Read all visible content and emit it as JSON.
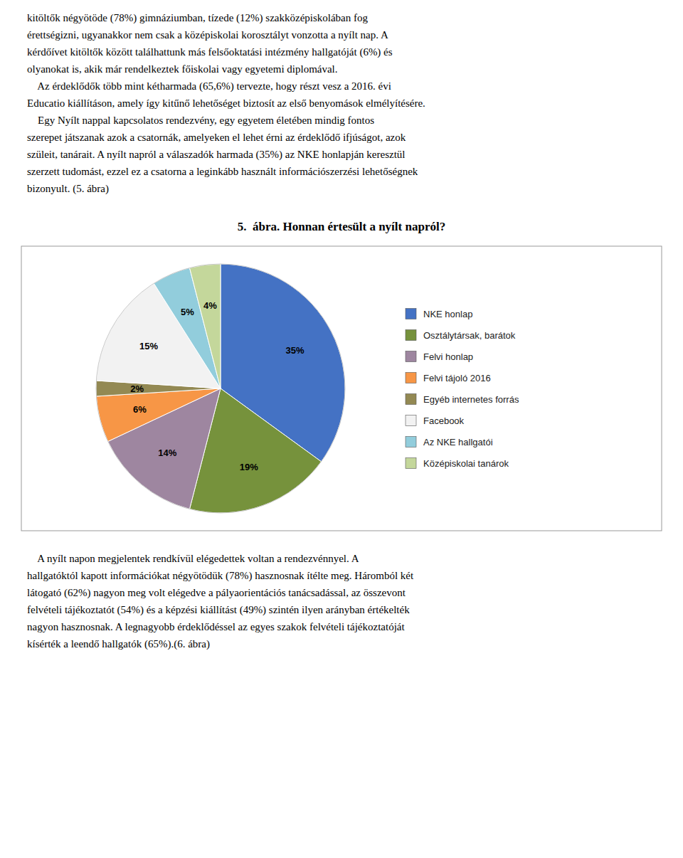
{
  "chart_data": {
    "type": "pie",
    "title": "5.  ábra. Honnan értesült a nyílt napról?",
    "categories": [
      "NKE honlap",
      "Osztálytársak, barátok",
      "Felvi honlap",
      "Felvi tájoló 2016",
      "Egyéb internetes forrás",
      "Facebook",
      "Az NKE hallgatói",
      "Középiskolai tanárok"
    ],
    "values": [
      35,
      19,
      14,
      6,
      2,
      15,
      5,
      4
    ],
    "value_labels": [
      "35%",
      "19%",
      "14%",
      "6%",
      "2%",
      "15%",
      "5%",
      "4%"
    ],
    "colors": [
      "#4472C4",
      "#76923C",
      "#9E86A0",
      "#F79646",
      "#938953",
      "#F2F2F2",
      "#92CDDC",
      "#C4D79B"
    ],
    "data_labels": true,
    "legend": "right",
    "annotations": [
      [
        "kitöltők négyötöde (78%) gimnáziumban, tízede (12%) szakközépiskolában fog",
        "érettségizni, ugyanakkor nem csak a középiskolai korosztályt vonzotta a nyílt nap. A",
        "kérdőívet kitöltők között találhattunk más felsőoktatási intézmény hallgatóját (6%) és",
        "olyanokat is, akik már rendelkeztek főiskolai vagy egyetemi diplomával.",
        "    Az érdeklődők több mint kétharmada (65,6%) tervezte, hogy részt vesz a 2016. évi",
        "Educatio kiállításon, amely így kitűnő lehetőséget biztosít az első benyomások elmélyítésére.",
        "    Egy Nyílt nappal kapcsolatos rendezvény, egy egyetem életében mindig fontos",
        "szerepet játszanak azok a csatornák, amelyeken el lehet érni az érdeklődő ifjúságot, azok",
        "szüleit, tanárait. A nyílt napról a válaszadók harmada (35%) az NKE honlapján keresztül",
        "szerzett tudomást, ezzel ez a csatorna a leginkább használt információszerzési lehetőségnek",
        "bizonyult. (5. ábra)"
      ],
      [
        "    A nyílt napon megjelentek rendkívül elégedettek voltan a rendezvénnyel. A",
        "hallgatóktól kapott információkat négyötödük (78%) hasznosnak ítélte meg. Háromból két",
        "látogató (62%) nagyon meg volt elégedve a pályaorientációs tanácsadással, az összevont",
        "felvételi tájékoztatót (54%) és a képzési kiállítást (49%) szintén ilyen arányban értékelték",
        "nagyon hasznosnak. A legnagyobb érdeklődéssel az egyes szakok felvételi tájékoztatóját",
        "kísérték a leendő hallgatók (65%).(6. ábra)"
      ]
    ]
  }
}
